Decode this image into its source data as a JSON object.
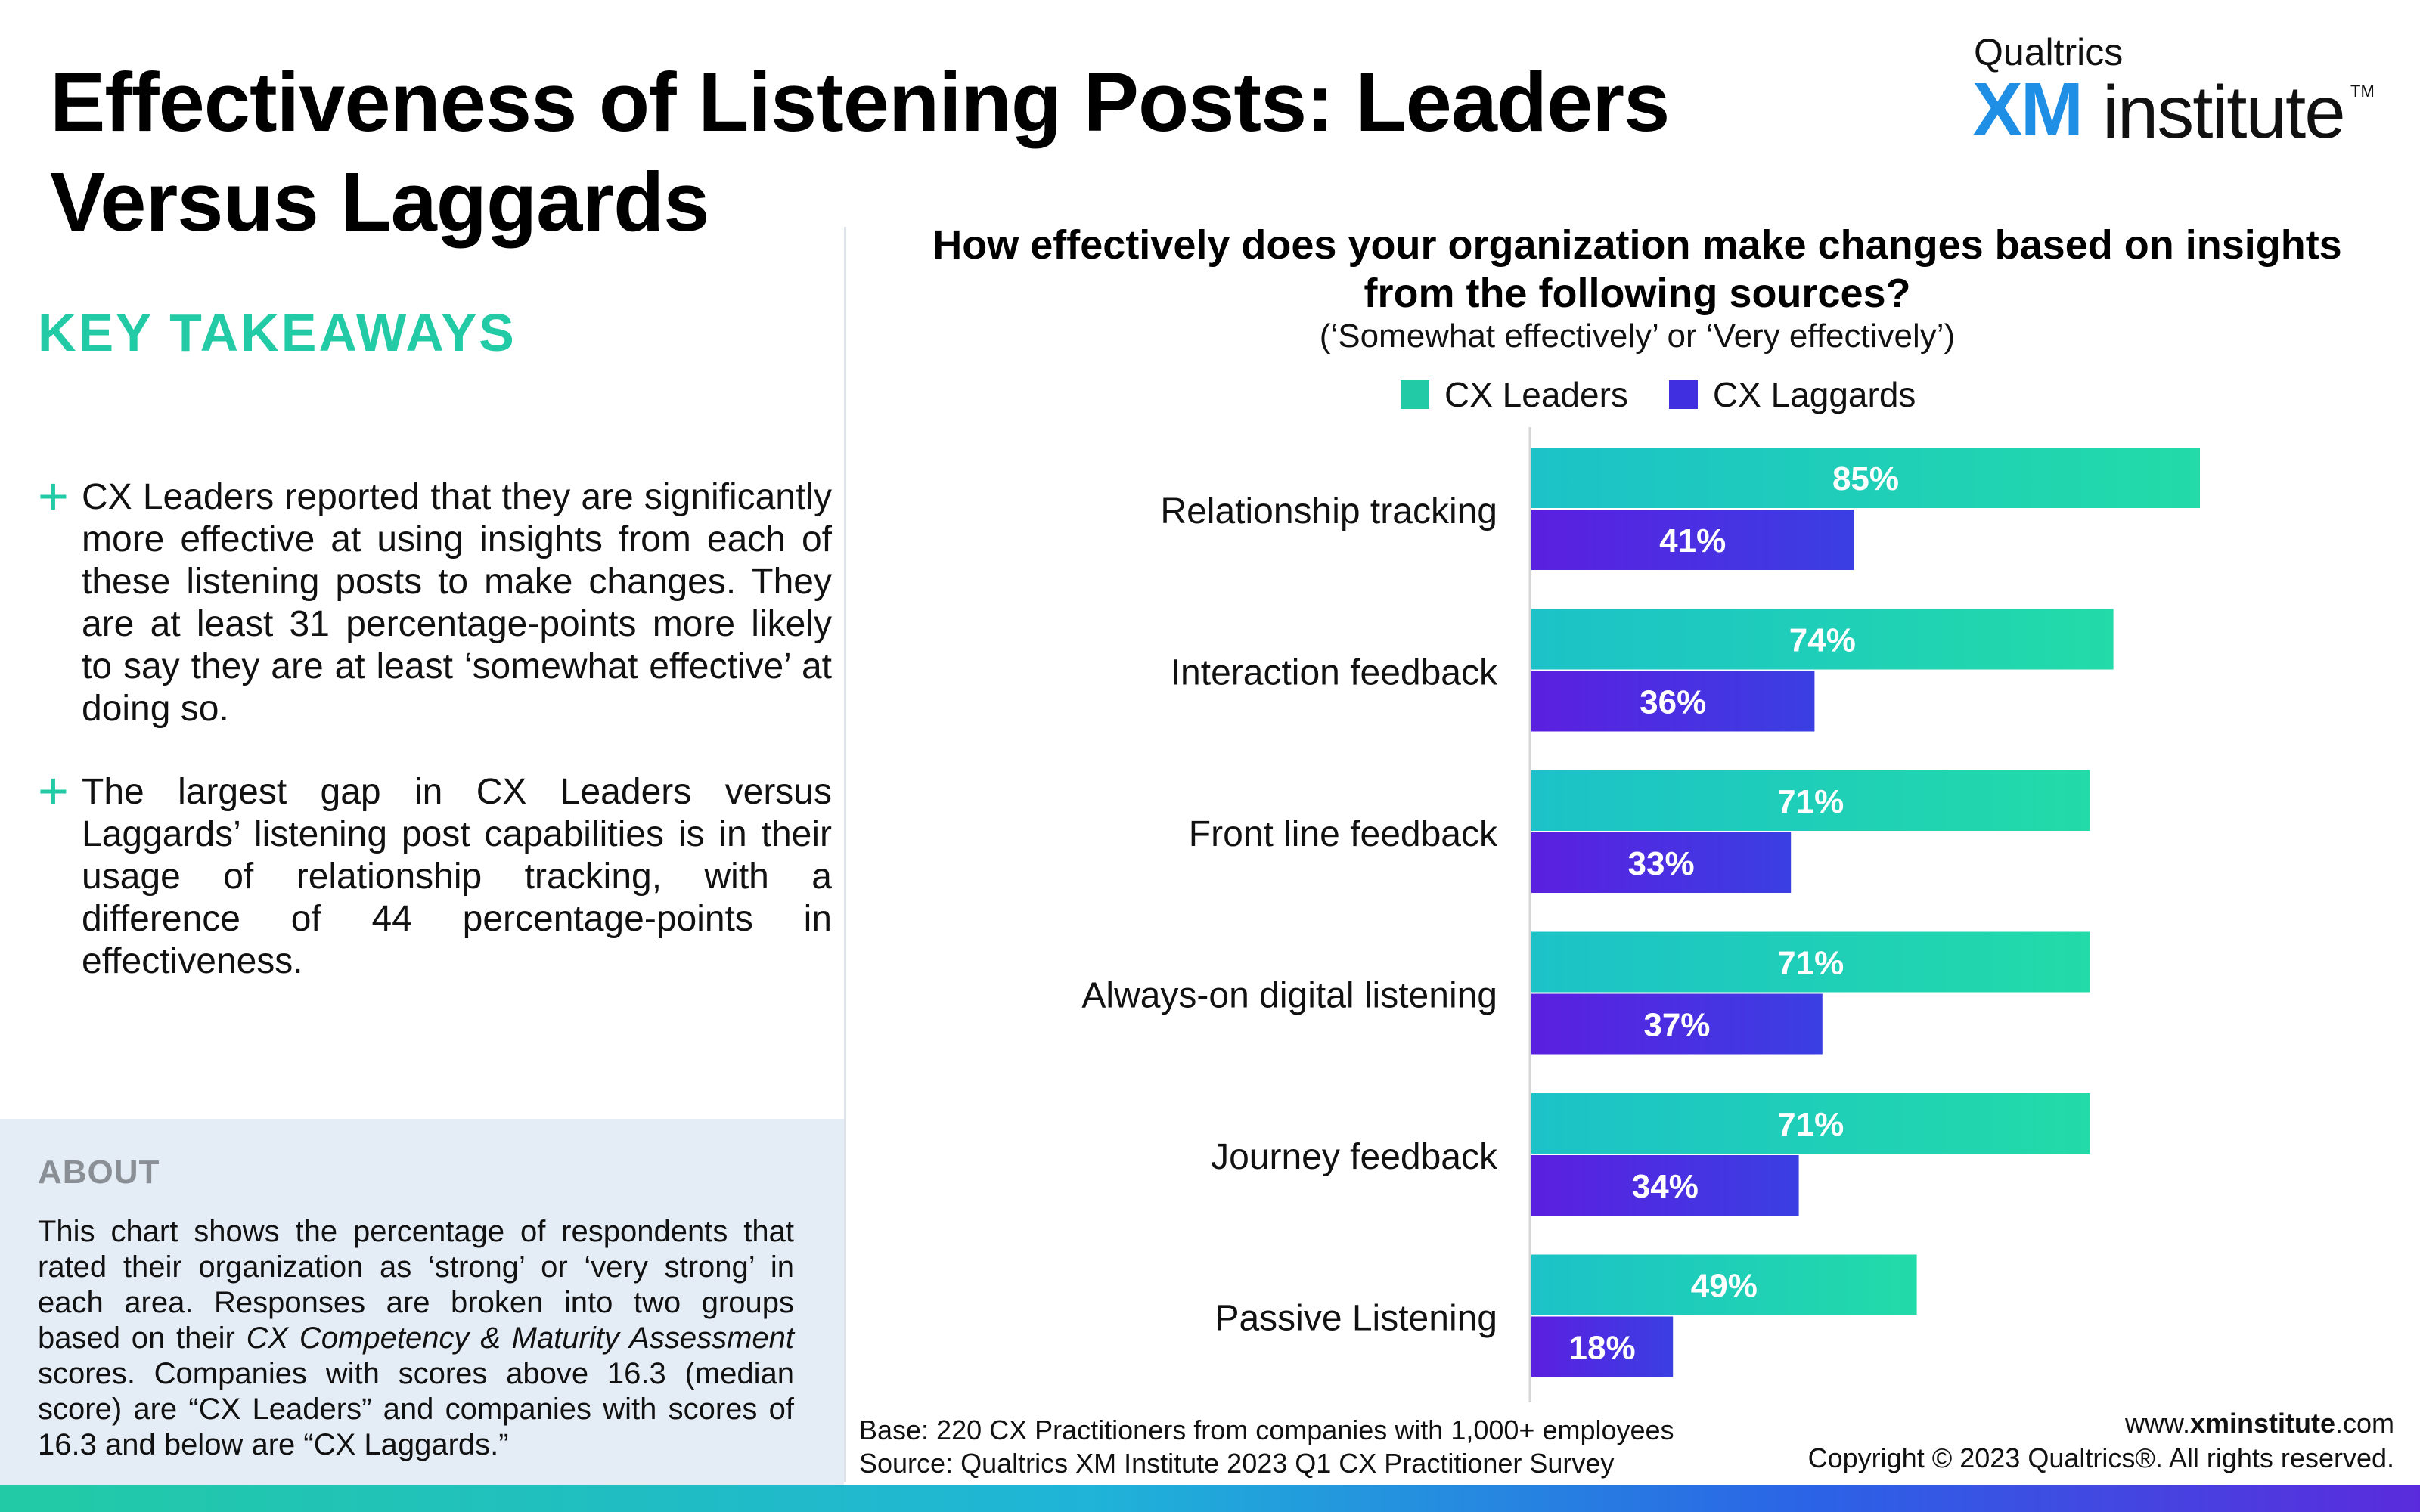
{
  "header": {
    "title": "Effectiveness of Listening Posts: Leaders Versus Laggards",
    "logo_top": "Qualtrics",
    "logo_xm": "XM",
    "logo_institute": "institute",
    "logo_tm": "TM"
  },
  "sidebar": {
    "key_title": "KEY TAKEAWAYS",
    "takeaways": [
      "CX Leaders reported that they are significantly more effective at using insights from each of these listening posts to make changes. They are at least 31 percentage-points more likely to say they are at least ‘somewhat effective’ at doing so.",
      "The largest gap in CX Leaders versus Laggards’ listening post capabilities is in their usage of relationship tracking, with a difference of 44 percentage-points in effectiveness."
    ],
    "about_title": "ABOUT",
    "about_text_1": "This chart shows the percentage of respondents that rated their organization as ‘strong’ or ‘very strong’ in each area. Responses are broken into two groups based on their ",
    "about_text_em": "CX Competency & Maturity Assessment",
    "about_text_2": " scores. Companies with scores above 16.3 (median score) are “CX Leaders” and companies with scores of 16.3 and below are “CX Laggards.”"
  },
  "chart_data": {
    "type": "bar",
    "orientation": "horizontal",
    "title": "How effectively does your organization make changes based on insights from the following sources?",
    "subtitle": "(‘Somewhat effectively’ or ‘Very effectively’)",
    "categories": [
      "Relationship tracking",
      "Interaction feedback",
      "Front line feedback",
      "Always-on digital listening",
      "Journey feedback",
      "Passive Listening"
    ],
    "series": [
      {
        "name": "CX Leaders",
        "values": [
          85,
          74,
          71,
          71,
          71,
          49
        ],
        "labels": [
          "85%",
          "74%",
          "71%",
          "71%",
          "71%",
          "49%"
        ],
        "color": "#22cba5"
      },
      {
        "name": "CX Laggards",
        "values": [
          41,
          36,
          33,
          37,
          34,
          18
        ],
        "labels": [
          "41%",
          "36%",
          "33%",
          "37%",
          "34%",
          "18%"
        ],
        "color": "#4a2ee0"
      }
    ],
    "xlim": [
      0,
      100
    ],
    "grid": false,
    "legend_position": "top"
  },
  "footer": {
    "base": "Base: 220 CX Practitioners from companies with 1,000+ employees",
    "source": "Source: Qualtrics XM Institute 2023 Q1 CX Practitioner Survey",
    "website_prefix": "www.",
    "website_bold": "xminstitute",
    "website_suffix": ".com",
    "copyright": "Copyright © 2023 Qualtrics®. All rights reserved."
  },
  "colors": {
    "accent_teal": "#22cba5",
    "leaders_start": "#1cc2c8",
    "leaders_end": "#22dba8",
    "laggards_start": "#5b1fe0",
    "laggards_end": "#3a3fe3",
    "about_bg": "#e4ecf5",
    "logo_blue": "#1f8fe6"
  }
}
